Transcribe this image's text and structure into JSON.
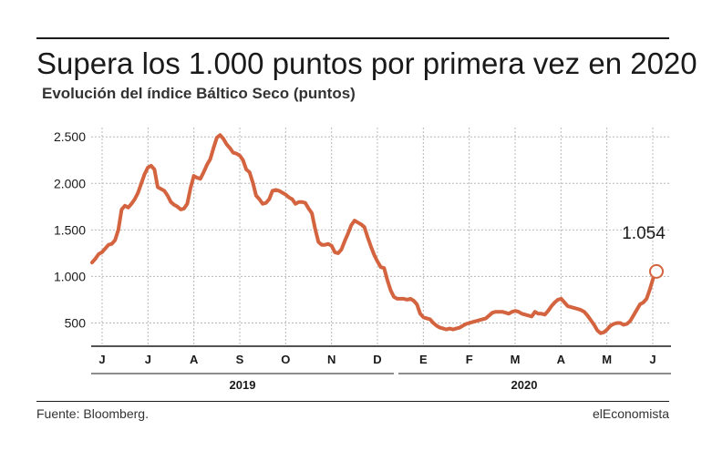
{
  "header": {
    "title": "Supera los 1.000 puntos por primera vez en 2020",
    "subtitle": "Evolución del índice Báltico Seco (puntos)"
  },
  "footer": {
    "source": "Fuente: Bloomberg.",
    "brand": "elEconomista"
  },
  "colors": {
    "line": "#d4643f",
    "grid": "#b8b8b8",
    "axis": "#1a1a1a",
    "text": "#1a1a1a"
  },
  "chart_data": {
    "type": "line",
    "title": "Supera los 1.000 puntos por primera vez en 2020",
    "subtitle": "Evolución del índice Báltico Seco (puntos)",
    "xlabel": "",
    "ylabel": "",
    "ylim": [
      250,
      2600
    ],
    "yticks": [
      500,
      1000,
      1500,
      2000,
      2500
    ],
    "ytick_labels": [
      "500",
      "1.000",
      "1.500",
      "2.000",
      "2.500"
    ],
    "months": [
      "J",
      "J",
      "A",
      "S",
      "O",
      "N",
      "D",
      "E",
      "F",
      "M",
      "A",
      "M",
      "J"
    ],
    "years": [
      "2019",
      "2020"
    ],
    "grid": true,
    "annotation": {
      "label": "1.054",
      "value": 1054
    },
    "series": [
      {
        "values": [
          1150,
          1190,
          1240,
          1260,
          1300,
          1340,
          1350,
          1390,
          1500,
          1720,
          1760,
          1740,
          1780,
          1830,
          1900,
          2000,
          2100,
          2170,
          2190,
          2150,
          1960,
          1940,
          1920,
          1870,
          1800,
          1770,
          1750,
          1720,
          1730,
          1780,
          1950,
          2080,
          2060,
          2050,
          2120,
          2200,
          2260,
          2380,
          2490,
          2520,
          2480,
          2420,
          2380,
          2330,
          2320,
          2300,
          2250,
          2150,
          2120,
          2010,
          1870,
          1830,
          1780,
          1790,
          1830,
          1920,
          1930,
          1920,
          1900,
          1880,
          1850,
          1830,
          1780,
          1800,
          1800,
          1790,
          1730,
          1680,
          1510,
          1370,
          1340,
          1340,
          1350,
          1330,
          1260,
          1250,
          1290,
          1380,
          1460,
          1550,
          1600,
          1580,
          1560,
          1530,
          1420,
          1320,
          1230,
          1160,
          1100,
          1090,
          960,
          850,
          780,
          760,
          760,
          760,
          750,
          760,
          740,
          700,
          600,
          560,
          550,
          540,
          500,
          470,
          450,
          440,
          430,
          440,
          430,
          440,
          450,
          470,
          490,
          500,
          510,
          520,
          530,
          540,
          550,
          580,
          610,
          620,
          620,
          620,
          610,
          600,
          620,
          630,
          620,
          600,
          590,
          580,
          570,
          620,
          600,
          600,
          590,
          630,
          680,
          720,
          750,
          760,
          720,
          680,
          670,
          660,
          650,
          640,
          620,
          580,
          530,
          480,
          420,
          390,
          400,
          430,
          470,
          490,
          500,
          500,
          480,
          490,
          520,
          580,
          640,
          700,
          720,
          760,
          860,
          980,
          1054
        ]
      }
    ]
  }
}
